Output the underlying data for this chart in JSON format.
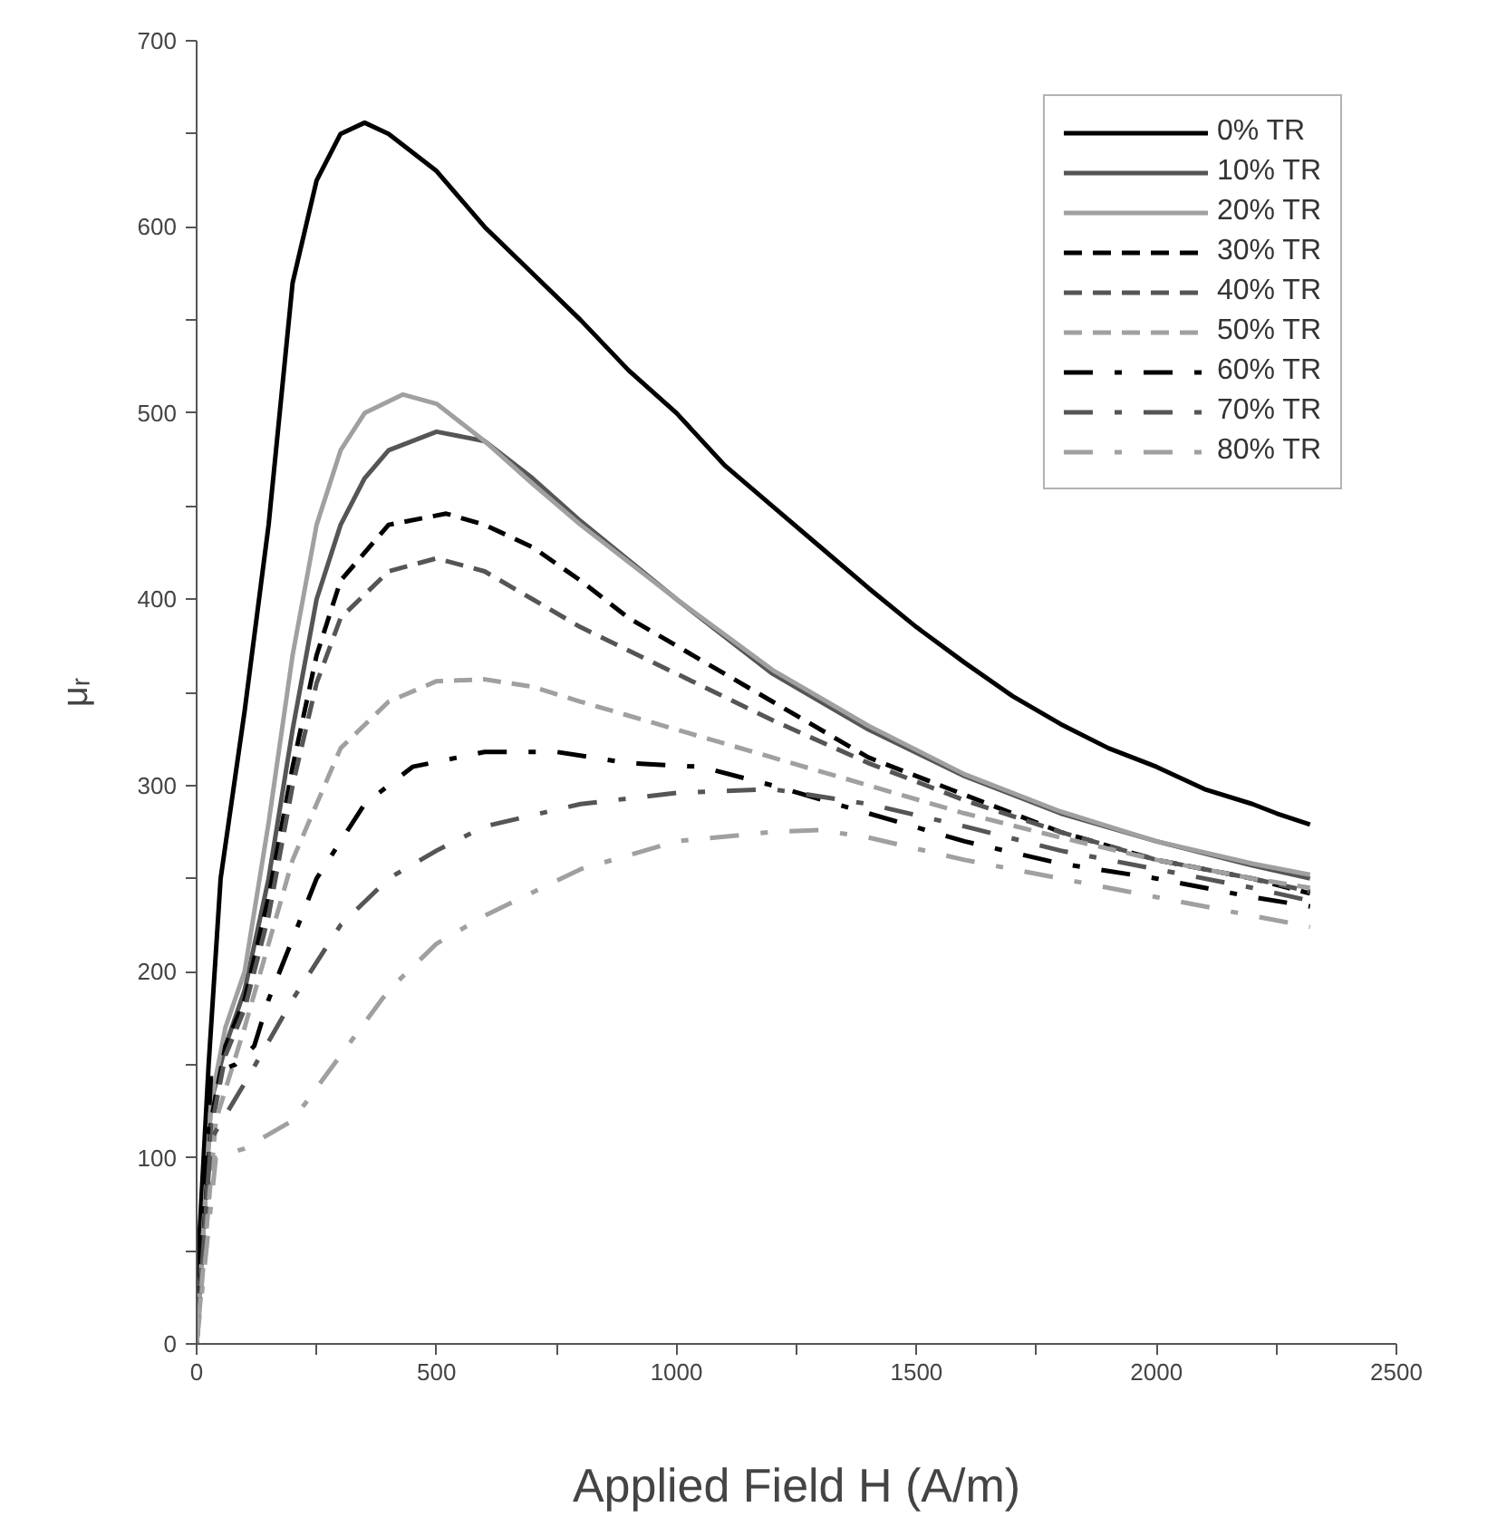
{
  "chart_data": {
    "type": "line",
    "xlabel": "Applied Field H (A/m)",
    "ylabel": "μᵣ",
    "xlim": [
      0,
      2500
    ],
    "ylim": [
      0,
      700
    ],
    "xticks": [
      0,
      {
        "value": 250,
        "label": null
      },
      500,
      {
        "value": 750,
        "label": null
      },
      1000,
      {
        "value": 1250,
        "label": null
      },
      1500,
      {
        "value": 1750,
        "label": null
      },
      2000,
      {
        "value": 2250,
        "label": null
      },
      2500
    ],
    "yticks": [
      0,
      {
        "value": 50,
        "label": null
      },
      100,
      {
        "value": 150,
        "label": null
      },
      200,
      {
        "value": 250,
        "label": null
      },
      300,
      {
        "value": 350,
        "label": null
      },
      400,
      {
        "value": 450,
        "label": null
      },
      500,
      {
        "value": 550,
        "label": null
      },
      600,
      {
        "value": 650,
        "label": null
      },
      700
    ],
    "grid": false,
    "legend": "top right",
    "series": [
      {
        "name": "0% TR",
        "color": "#000000",
        "line_style": "solid",
        "x": [
          0,
          25,
          50,
          100,
          150,
          200,
          250,
          300,
          350,
          400,
          500,
          600,
          700,
          800,
          900,
          1000,
          1100,
          1200,
          1300,
          1400,
          1500,
          1600,
          1700,
          1800,
          1900,
          2000,
          2100,
          2200,
          2250,
          2320
        ],
        "values": [
          30,
          150,
          250,
          340,
          440,
          570,
          625,
          650,
          656,
          650,
          630,
          600,
          575,
          550,
          523,
          500,
          472,
          450,
          428,
          406,
          385,
          366,
          348,
          333,
          320,
          310,
          298,
          290,
          285,
          279
        ]
      },
      {
        "name": "10% TR",
        "color": "#555555",
        "line_style": "solid",
        "x": [
          0,
          30,
          60,
          100,
          150,
          200,
          250,
          300,
          350,
          400,
          500,
          600,
          700,
          800,
          1000,
          1200,
          1400,
          1600,
          1800,
          2000,
          2200,
          2320
        ],
        "values": [
          0,
          130,
          160,
          190,
          250,
          330,
          400,
          440,
          465,
          480,
          490,
          485,
          465,
          442,
          400,
          360,
          330,
          305,
          285,
          270,
          257,
          250
        ]
      },
      {
        "name": "20% TR",
        "color": "#a0a0a0",
        "line_style": "solid",
        "x": [
          0,
          30,
          60,
          100,
          150,
          200,
          250,
          300,
          350,
          430,
          500,
          600,
          700,
          800,
          1000,
          1200,
          1400,
          1600,
          1800,
          2000,
          2200,
          2320
        ],
        "values": [
          0,
          130,
          170,
          200,
          280,
          370,
          440,
          480,
          500,
          510,
          505,
          485,
          462,
          440,
          400,
          362,
          332,
          306,
          286,
          270,
          258,
          252
        ]
      },
      {
        "name": "30% TR",
        "color": "#000000",
        "line_style": "dashed",
        "x": [
          0,
          30,
          60,
          100,
          150,
          200,
          250,
          300,
          400,
          520,
          600,
          700,
          800,
          900,
          1000,
          1200,
          1400,
          1600,
          1800,
          2000,
          2200,
          2320
        ],
        "values": [
          0,
          120,
          160,
          185,
          240,
          310,
          370,
          410,
          440,
          446,
          440,
          428,
          410,
          390,
          375,
          345,
          315,
          295,
          275,
          260,
          250,
          242
        ]
      },
      {
        "name": "40% TR",
        "color": "#555555",
        "line_style": "dashed",
        "x": [
          0,
          30,
          60,
          100,
          150,
          200,
          250,
          300,
          400,
          500,
          600,
          700,
          800,
          1000,
          1200,
          1400,
          1600,
          1800,
          2000,
          2200,
          2320
        ],
        "values": [
          0,
          115,
          155,
          180,
          230,
          300,
          355,
          390,
          415,
          422,
          415,
          400,
          385,
          360,
          335,
          312,
          292,
          275,
          260,
          250,
          243
        ]
      },
      {
        "name": "50% TR",
        "color": "#a0a0a0",
        "line_style": "dashed",
        "x": [
          0,
          40,
          100,
          150,
          200,
          300,
          400,
          500,
          600,
          700,
          800,
          1000,
          1200,
          1400,
          1600,
          1800,
          2000,
          2200,
          2320
        ],
        "values": [
          0,
          120,
          170,
          215,
          260,
          320,
          345,
          356,
          357,
          353,
          345,
          330,
          315,
          300,
          285,
          272,
          260,
          250,
          245
        ]
      },
      {
        "name": "60% TR",
        "color": "#000000",
        "line_style": "dashdot",
        "x": [
          0,
          30,
          80,
          120,
          150,
          250,
          350,
          450,
          600,
          750,
          900,
          1050,
          1200,
          1400,
          1600,
          1800,
          2000,
          2200,
          2320
        ],
        "values": [
          0,
          145,
          150,
          160,
          185,
          250,
          290,
          310,
          318,
          318,
          312,
          310,
          300,
          285,
          270,
          258,
          250,
          240,
          235
        ]
      },
      {
        "name": "70% TR",
        "color": "#555555",
        "line_style": "dashdot",
        "x": [
          0,
          30,
          100,
          200,
          300,
          400,
          500,
          600,
          800,
          1000,
          1200,
          1400,
          1600,
          1800,
          2000,
          2200,
          2320
        ],
        "values": [
          0,
          110,
          140,
          185,
          225,
          250,
          265,
          278,
          290,
          296,
          298,
          290,
          278,
          265,
          255,
          245,
          238
        ]
      },
      {
        "name": "80% TR",
        "color": "#a0a0a0",
        "line_style": "dashdot",
        "x": [
          0,
          40,
          100,
          200,
          300,
          400,
          500,
          600,
          800,
          1000,
          1200,
          1300,
          1400,
          1600,
          1800,
          2000,
          2200,
          2320
        ],
        "values": [
          0,
          100,
          105,
          120,
          155,
          190,
          215,
          230,
          255,
          270,
          275,
          276,
          272,
          260,
          250,
          240,
          230,
          224
        ]
      }
    ]
  }
}
